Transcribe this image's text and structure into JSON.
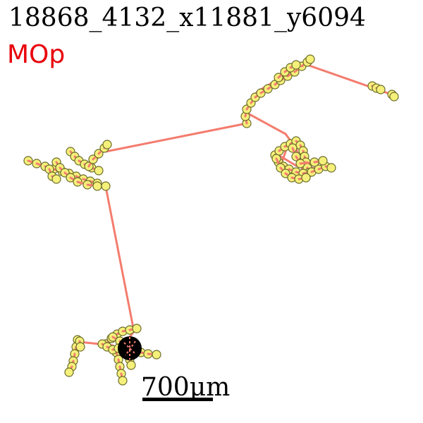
{
  "title": "18868_4132_x11881_y6094",
  "region": "MOp",
  "scale_bar": {
    "label": "700μm"
  },
  "colors": {
    "region": "#e8000b",
    "edge": "#f47c6e",
    "node_fill": "#f5f07a",
    "node_stroke": "#6b6b2a",
    "soma": "#000000"
  }
}
